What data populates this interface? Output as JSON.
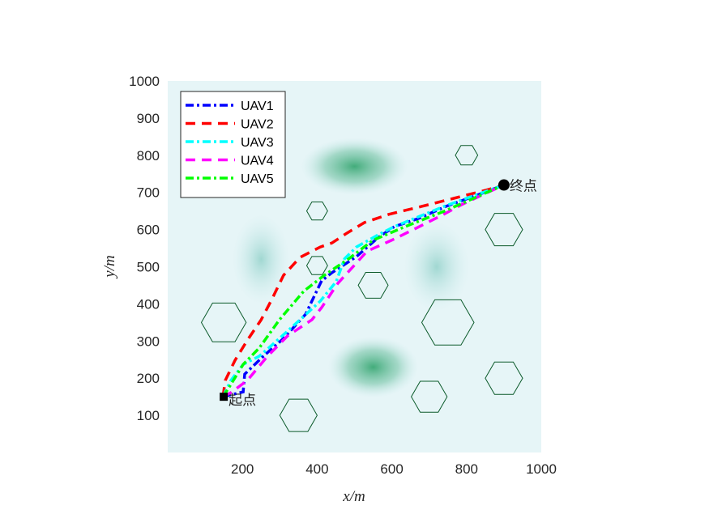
{
  "chart_data": {
    "type": "line",
    "title": "",
    "xlabel": "x/m",
    "ylabel": "y/m",
    "xlim": [
      0,
      1000
    ],
    "ylim": [
      0,
      1000
    ],
    "xticks": [
      200,
      400,
      600,
      800,
      1000
    ],
    "yticks": [
      100,
      200,
      300,
      400,
      500,
      600,
      700,
      800,
      900,
      1000
    ],
    "legend_position": "top-left",
    "start": {
      "label": "起点",
      "x": 150,
      "y": 150
    },
    "end": {
      "label": "终点",
      "x": 900,
      "y": 720
    },
    "series": [
      {
        "name": "UAV1",
        "color": "#0000ff",
        "dash": "dashdot",
        "points": [
          [
            148,
            150
          ],
          [
            202,
            163
          ],
          [
            206,
            211
          ],
          [
            256,
            259
          ],
          [
            310,
            307
          ],
          [
            369,
            372
          ],
          [
            412,
            462
          ],
          [
            440,
            484
          ],
          [
            505,
            527
          ],
          [
            564,
            579
          ],
          [
            607,
            608
          ],
          [
            672,
            630
          ],
          [
            744,
            662
          ],
          [
            824,
            691
          ],
          [
            900,
            720
          ]
        ]
      },
      {
        "name": "UAV2",
        "color": "#ff0000",
        "dash": "dashed",
        "points": [
          [
            148,
            150
          ],
          [
            154,
            194
          ],
          [
            180,
            248
          ],
          [
            213,
            302
          ],
          [
            250,
            357
          ],
          [
            278,
            411
          ],
          [
            310,
            477
          ],
          [
            354,
            525
          ],
          [
            408,
            553
          ],
          [
            440,
            564
          ],
          [
            479,
            590
          ],
          [
            527,
            619
          ],
          [
            592,
            641
          ],
          [
            679,
            662
          ],
          [
            766,
            684
          ],
          [
            852,
            706
          ],
          [
            900,
            720
          ]
        ]
      },
      {
        "name": "UAV3",
        "color": "#00ffff",
        "dash": "dashdot",
        "points": [
          [
            148,
            150
          ],
          [
            169,
            194
          ],
          [
            202,
            237
          ],
          [
            245,
            259
          ],
          [
            299,
            307
          ],
          [
            354,
            357
          ],
          [
            408,
            407
          ],
          [
            451,
            460
          ],
          [
            473,
            521
          ],
          [
            505,
            553
          ],
          [
            564,
            586
          ],
          [
            607,
            608
          ],
          [
            744,
            664
          ],
          [
            900,
            720
          ]
        ]
      },
      {
        "name": "UAV4",
        "color": "#ff00ff",
        "dash": "dashed",
        "points": [
          [
            148,
            150
          ],
          [
            169,
            161
          ],
          [
            213,
            194
          ],
          [
            267,
            259
          ],
          [
            321,
            314
          ],
          [
            386,
            357
          ],
          [
            412,
            390
          ],
          [
            455,
            455
          ],
          [
            534,
            542
          ],
          [
            599,
            571
          ],
          [
            664,
            603
          ],
          [
            729,
            636
          ],
          [
            787,
            667
          ],
          [
            846,
            695
          ],
          [
            900,
            720
          ]
        ]
      },
      {
        "name": "UAV5",
        "color": "#00ff00",
        "dash": "dashdot",
        "points": [
          [
            148,
            150
          ],
          [
            169,
            183
          ],
          [
            202,
            237
          ],
          [
            245,
            281
          ],
          [
            299,
            357
          ],
          [
            364,
            434
          ],
          [
            419,
            477
          ],
          [
            484,
            521
          ],
          [
            549,
            571
          ],
          [
            636,
            608
          ],
          [
            744,
            651
          ],
          [
            900,
            720
          ]
        ]
      }
    ],
    "obstacles": [
      [
        150,
        350,
        60
      ],
      [
        400,
        650,
        28
      ],
      [
        400,
        503,
        28
      ],
      [
        550,
        450,
        40
      ],
      [
        800,
        800,
        30
      ],
      [
        900,
        600,
        50
      ],
      [
        750,
        350,
        70
      ],
      [
        900,
        200,
        50
      ],
      [
        700,
        150,
        48
      ],
      [
        350,
        100,
        50
      ]
    ],
    "threat_peaks": [
      [
        500,
        770
      ],
      [
        550,
        230
      ],
      [
        720,
        500
      ],
      [
        250,
        520
      ]
    ]
  }
}
